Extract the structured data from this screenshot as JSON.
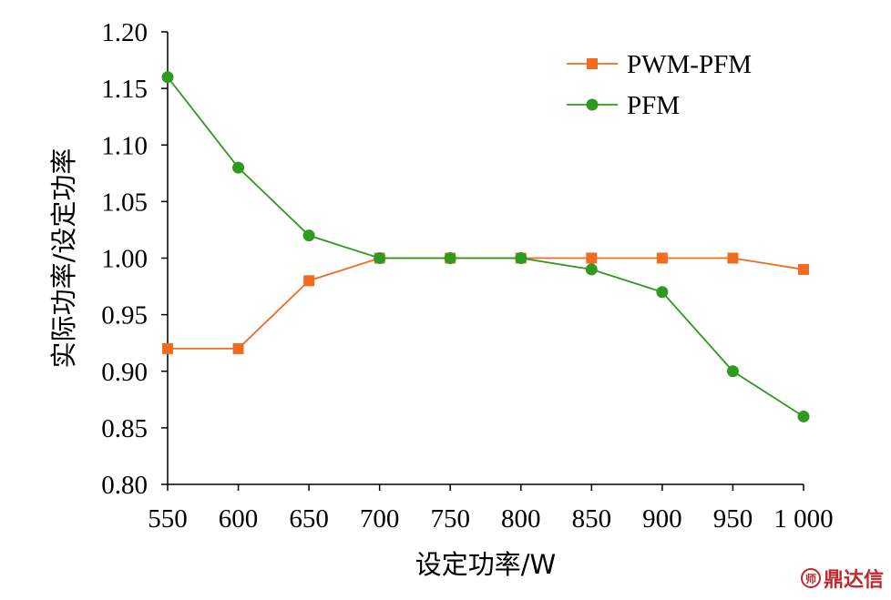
{
  "chart_data": {
    "type": "line",
    "xlabel": "设定功率/W",
    "ylabel": "实际功率/设定功率",
    "x": [
      550,
      600,
      650,
      700,
      750,
      800,
      850,
      900,
      950,
      1000
    ],
    "x_tick_labels": [
      "550",
      "600",
      "650",
      "700",
      "750",
      "800",
      "850",
      "900",
      "950",
      "1 000"
    ],
    "y_ticks": [
      "0.80",
      "0.85",
      "0.90",
      "0.95",
      "1.00",
      "1.05",
      "1.10",
      "1.15",
      "1.20"
    ],
    "ylim": [
      0.8,
      1.2
    ],
    "grid": false,
    "legend_position": "top-right",
    "series": [
      {
        "name": "PWM-PFM",
        "marker": "square",
        "color": "#f26b21",
        "values": [
          0.92,
          0.92,
          0.98,
          1.0,
          1.0,
          1.0,
          1.0,
          1.0,
          1.0,
          0.99
        ]
      },
      {
        "name": "PFM",
        "marker": "circle",
        "color": "#2e9a1f",
        "values": [
          1.16,
          1.08,
          1.02,
          1.0,
          1.0,
          1.0,
          0.99,
          0.97,
          0.9,
          0.86
        ]
      }
    ]
  },
  "watermark": {
    "text": "鼎达信",
    "logo_glyph": "师"
  }
}
